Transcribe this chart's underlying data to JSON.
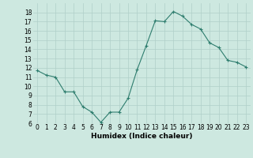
{
  "x": [
    0,
    1,
    2,
    3,
    4,
    5,
    6,
    7,
    8,
    9,
    10,
    11,
    12,
    13,
    14,
    15,
    16,
    17,
    18,
    19,
    20,
    21,
    22,
    23
  ],
  "y": [
    11.7,
    11.2,
    11.0,
    9.4,
    9.4,
    7.8,
    7.2,
    6.1,
    7.2,
    7.2,
    8.7,
    11.8,
    14.4,
    17.1,
    17.0,
    18.1,
    17.6,
    16.7,
    16.2,
    14.7,
    14.2,
    12.8,
    12.6,
    12.1
  ],
  "line_color": "#2e7d6e",
  "marker": "+",
  "marker_size": 3,
  "marker_linewidth": 0.8,
  "linewidth": 0.8,
  "bg_color": "#cde8e0",
  "grid_color": "#b0cfc8",
  "xlabel": "Humidex (Indice chaleur)",
  "ylim": [
    6,
    19
  ],
  "xlim": [
    -0.5,
    23.5
  ],
  "yticks": [
    6,
    7,
    8,
    9,
    10,
    11,
    12,
    13,
    14,
    15,
    16,
    17,
    18
  ],
  "xticks": [
    0,
    1,
    2,
    3,
    4,
    5,
    6,
    7,
    8,
    9,
    10,
    11,
    12,
    13,
    14,
    15,
    16,
    17,
    18,
    19,
    20,
    21,
    22,
    23
  ],
  "xtick_labels": [
    "0",
    "1",
    "2",
    "3",
    "4",
    "5",
    "6",
    "7",
    "8",
    "9",
    "10",
    "11",
    "12",
    "13",
    "14",
    "15",
    "16",
    "17",
    "18",
    "19",
    "20",
    "21",
    "22",
    "23"
  ],
  "label_fontsize": 6.5,
  "tick_fontsize": 5.5,
  "xlabel_fontweight": "bold"
}
